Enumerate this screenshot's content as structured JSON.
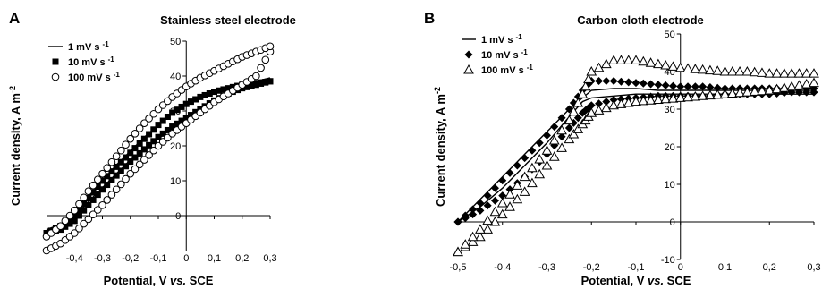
{
  "panels": [
    {
      "letter": "A",
      "chart_data": {
        "type": "scatter",
        "title": "Stainless steel electrode",
        "xlabel": "Potential, V vs. SCE",
        "ylabel": "Current density, A m-2",
        "xlim": [
          -0.5,
          0.3
        ],
        "ylim": [
          -10,
          50
        ],
        "xticks": [
          -0.4,
          -0.3,
          -0.2,
          -0.1,
          0,
          0.1,
          0.2,
          0.3
        ],
        "xtick_labels": [
          "-0,4",
          "-0,3",
          "-0,2",
          "-0,1",
          "0",
          "0,1",
          "0,2",
          "0,3"
        ],
        "yticks": [
          0,
          10,
          20,
          30,
          40,
          50
        ],
        "ytick_labels": [
          "0",
          "10",
          "20",
          "30",
          "40",
          "50"
        ],
        "grid": false,
        "legend_position": "top-left",
        "series": [
          {
            "name": "1 mV s -1",
            "marker": "line",
            "x": [
              -0.5,
              -0.45,
              -0.4,
              -0.35,
              -0.3,
              -0.25,
              -0.2,
              -0.15,
              -0.1,
              -0.05,
              0,
              0.05,
              0.1,
              0.15,
              0.2,
              0.25,
              0.3
            ],
            "y": [
              -4,
              -3,
              -0.5,
              4,
              8,
              12,
              16,
              19,
              22,
              25,
              27.5,
              30,
              33,
              35.5,
              37.5,
              38.5,
              39.5
            ],
            "y_return": [
              -4,
              -2.5,
              0.5,
              5.5,
              10,
              14.5,
              18.5,
              22.5,
              26,
              29.5,
              32,
              34,
              35.5,
              36.5,
              37.5,
              38.5,
              39.5
            ]
          },
          {
            "name": "10 mV s -1",
            "marker": "square-filled",
            "x": [
              -0.5,
              -0.45,
              -0.4,
              -0.35,
              -0.3,
              -0.25,
              -0.2,
              -0.15,
              -0.1,
              -0.05,
              0,
              0.05,
              0.1,
              0.15,
              0.2,
              0.25,
              0.3
            ],
            "y": [
              -5,
              -4,
              -1.5,
              3,
              7.5,
              11.5,
              15.5,
              19,
              22.5,
              25.5,
              28,
              30.5,
              33,
              35,
              36.5,
              37.5,
              38.5
            ],
            "y_return": [
              -5,
              -3,
              0,
              5,
              10,
              14,
              18,
              22,
              26,
              29.5,
              32,
              34,
              35.5,
              36.5,
              37.5,
              38,
              38.5
            ]
          },
          {
            "name": "100 mV s -1",
            "marker": "circle-open",
            "x": [
              -0.5,
              -0.45,
              -0.4,
              -0.35,
              -0.3,
              -0.25,
              -0.2,
              -0.15,
              -0.1,
              -0.05,
              0,
              0.05,
              0.1,
              0.15,
              0.2,
              0.25,
              0.3
            ],
            "y": [
              -10,
              -8,
              -5,
              -1,
              3,
              7.5,
              12,
              16,
              20,
              23.5,
              26.5,
              29.5,
              32.5,
              35,
              37.5,
              40,
              47
            ],
            "y_return": [
              -6,
              -3,
              1.5,
              7,
              12,
              17,
              22,
              26.5,
              30.5,
              34,
              37,
              39.5,
              41.5,
              43.5,
              45.5,
              47,
              48.5
            ]
          }
        ]
      }
    },
    {
      "letter": "B",
      "chart_data": {
        "type": "scatter",
        "title": "Carbon cloth electrode",
        "xlabel": "Potential, V vs. SCE",
        "ylabel": "Current density, A m-2",
        "xlim": [
          -0.5,
          0.3
        ],
        "ylim": [
          -10,
          50
        ],
        "xticks": [
          -0.5,
          -0.4,
          -0.3,
          -0.2,
          -0.1,
          0,
          0.1,
          0.2,
          0.3
        ],
        "xtick_labels": [
          "-0,5",
          "-0,4",
          "-0,3",
          "-0,2",
          "-0,1",
          "0",
          "0,1",
          "0,2",
          "0,3"
        ],
        "yticks": [
          -10,
          0,
          10,
          20,
          30,
          40,
          50
        ],
        "ytick_labels": [
          "-10",
          "0",
          "10",
          "20",
          "30",
          "40",
          "50"
        ],
        "grid": false,
        "legend_position": "top-left",
        "series": [
          {
            "name": "1 mV s -1",
            "marker": "line",
            "x": [
              -0.5,
              -0.45,
              -0.4,
              -0.35,
              -0.3,
              -0.25,
              -0.22,
              -0.2,
              -0.15,
              -0.1,
              -0.05,
              0,
              0.05,
              0.1,
              0.15,
              0.2,
              0.25,
              0.3
            ],
            "y": [
              0,
              4,
              9,
              15,
              21,
              28,
              32,
              33,
              33.5,
              34,
              34,
              34,
              34,
              34,
              34,
              34,
              34,
              34
            ],
            "y_return": [
              0,
              6,
              12,
              18,
              24,
              30,
              33,
              35,
              35.5,
              35.5,
              35,
              35,
              35,
              35,
              35,
              35,
              35,
              35
            ]
          },
          {
            "name": "10 mV s -1",
            "marker": "diamond-filled",
            "x": [
              -0.5,
              -0.45,
              -0.4,
              -0.35,
              -0.3,
              -0.25,
              -0.22,
              -0.2,
              -0.15,
              -0.1,
              -0.05,
              0,
              0.05,
              0.1,
              0.15,
              0.2,
              0.25,
              0.3
            ],
            "y": [
              0,
              3,
              7,
              12,
              18,
              25,
              29,
              31,
              32.5,
              33,
              33.5,
              33.5,
              33.5,
              34,
              34,
              34,
              34.5,
              34.5
            ],
            "y_return": [
              0,
              5,
              11,
              17,
              23,
              30,
              35,
              37.5,
              37.5,
              37,
              36.5,
              36,
              36,
              35.5,
              35.5,
              35.5,
              35.5,
              35.5
            ]
          },
          {
            "name": "100 mV s -1",
            "marker": "triangle-open",
            "x": [
              -0.5,
              -0.45,
              -0.4,
              -0.35,
              -0.3,
              -0.25,
              -0.22,
              -0.2,
              -0.15,
              -0.1,
              -0.05,
              0,
              0.05,
              0.1,
              0.15,
              0.2,
              0.25,
              0.3
            ],
            "y": [
              -8,
              -4,
              2,
              8,
              15,
              22,
              26,
              29,
              31,
              32,
              32.5,
              33,
              33.5,
              34,
              34.5,
              35,
              36,
              37
            ],
            "y_return": [
              -8,
              -2,
              5,
              12,
              19,
              27,
              34,
              40,
              43,
              43,
              42,
              41,
              40.5,
              40,
              40,
              39.5,
              39.5,
              39.5
            ]
          }
        ]
      }
    }
  ]
}
